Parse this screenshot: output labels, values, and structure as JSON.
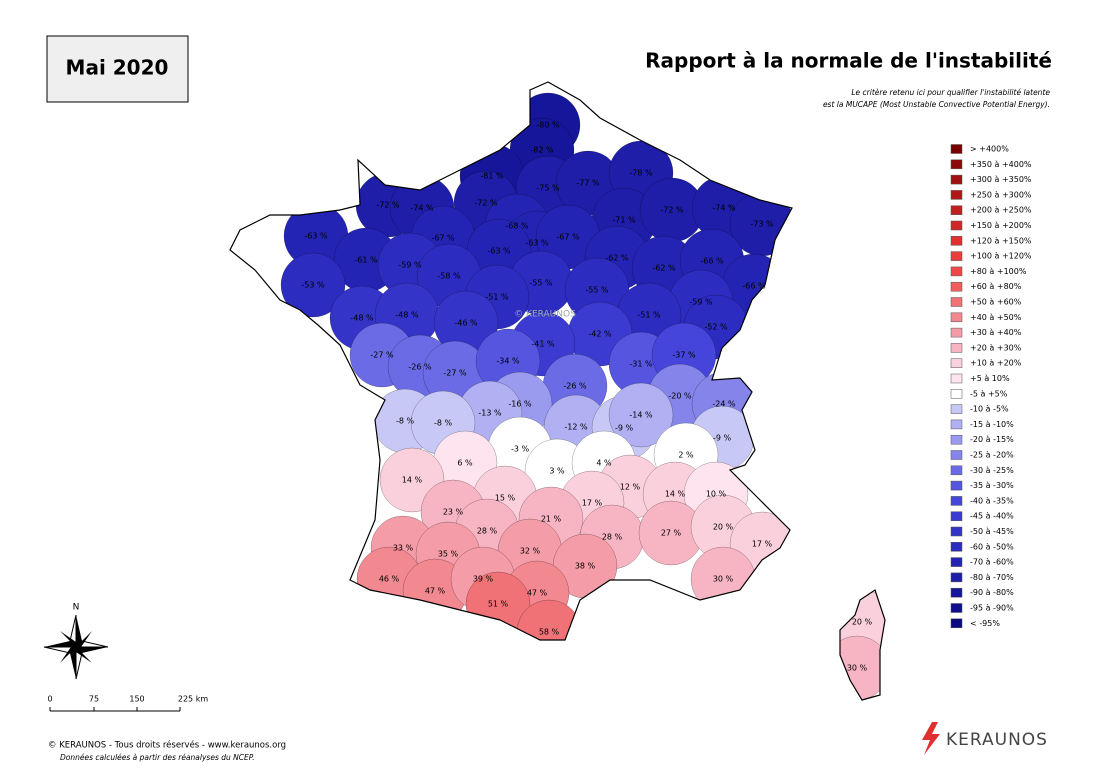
{
  "header": {
    "period": "Mai 2020",
    "title": "Rapport à la normale de l'instabilité",
    "note_line1": "Le critère retenu ici pour qualifier l'instabilité latente",
    "note_line2": "est la MUCAPE (Most Unstable Convective Potential Energy)."
  },
  "watermark": "© KERAUNOS",
  "legend": [
    {
      "label": "> +400%",
      "color": "#7a0000"
    },
    {
      "label": "+350 à +400%",
      "color": "#8e0a0a"
    },
    {
      "label": "+300 à +350%",
      "color": "#a01010"
    },
    {
      "label": "+250 à +300%",
      "color": "#b01818"
    },
    {
      "label": "+200 à +250%",
      "color": "#c02020"
    },
    {
      "label": "+150 à +200%",
      "color": "#d02828"
    },
    {
      "label": "+120 à +150%",
      "color": "#e03030"
    },
    {
      "label": "+100 à +120%",
      "color": "#ea3c3c"
    },
    {
      "label": "+80 à +100%",
      "color": "#f04848"
    },
    {
      "label": "+60 à +80%",
      "color": "#f25c5c"
    },
    {
      "label": "+50 à +60%",
      "color": "#f07276"
    },
    {
      "label": "+40 à +50%",
      "color": "#f28890"
    },
    {
      "label": "+30 à +40%",
      "color": "#f49ca8"
    },
    {
      "label": "+20 à +30%",
      "color": "#f7b4c2"
    },
    {
      "label": "+10 à +20%",
      "color": "#fad0dc"
    },
    {
      "label": "+5 à 10%",
      "color": "#fde4ee"
    },
    {
      "label": "-5 à +5%",
      "color": "#ffffff"
    },
    {
      "label": "-10 à -5%",
      "color": "#c8c8f6"
    },
    {
      "label": "-15 à -10%",
      "color": "#b0b0f2"
    },
    {
      "label": "-20 à -15%",
      "color": "#9a9aee"
    },
    {
      "label": "-25 à -20%",
      "color": "#8484ea"
    },
    {
      "label": "-30 à -25%",
      "color": "#6b6be6"
    },
    {
      "label": "-35 à -30%",
      "color": "#5555e0"
    },
    {
      "label": "-40 à -35%",
      "color": "#4545dc"
    },
    {
      "label": "-45 à -40%",
      "color": "#3b3bd2"
    },
    {
      "label": "-50 à -45%",
      "color": "#3434c8"
    },
    {
      "label": "-60 à -50%",
      "color": "#2c2cc0"
    },
    {
      "label": "-70 à -60%",
      "color": "#2424b4"
    },
    {
      "label": "-80 à -70%",
      "color": "#1e1ea8"
    },
    {
      "label": "-90 à -80%",
      "color": "#16169a"
    },
    {
      "label": "-95 à -90%",
      "color": "#10108c"
    },
    {
      "label": "< -95%",
      "color": "#0a0a80"
    }
  ],
  "departments": [
    {
      "label": "-80 %",
      "color": "#16169a"
    },
    {
      "label": "-82 %",
      "color": "#16169a"
    },
    {
      "label": "-81 %",
      "color": "#16169a"
    },
    {
      "label": "-75 %",
      "color": "#1e1ea8"
    },
    {
      "label": "-77 %",
      "color": "#1e1ea8"
    },
    {
      "label": "-78 %",
      "color": "#1e1ea8"
    },
    {
      "label": "-72 %",
      "color": "#1e1ea8"
    },
    {
      "label": "-74 %",
      "color": "#1e1ea8"
    },
    {
      "label": "-72 %",
      "color": "#1e1ea8"
    },
    {
      "label": "-71 %",
      "color": "#1e1ea8"
    },
    {
      "label": "-72 %",
      "color": "#1e1ea8"
    },
    {
      "label": "-74 %",
      "color": "#1e1ea8"
    },
    {
      "label": "-73 %",
      "color": "#1e1ea8"
    },
    {
      "label": "-63 %",
      "color": "#2424b4"
    },
    {
      "label": "-67 %",
      "color": "#2424b4"
    },
    {
      "label": "-68 %",
      "color": "#2424b4"
    },
    {
      "label": "-63 %",
      "color": "#2424b4"
    },
    {
      "label": "-67 %",
      "color": "#2424b4"
    },
    {
      "label": "-63 %",
      "color": "#2424b4"
    },
    {
      "label": "-61 %",
      "color": "#2424b4"
    },
    {
      "label": "-59 %",
      "color": "#2c2cc0"
    },
    {
      "label": "-58 %",
      "color": "#2c2cc0"
    },
    {
      "label": "-62 %",
      "color": "#2424b4"
    },
    {
      "label": "-62 %",
      "color": "#2424b4"
    },
    {
      "label": "-66 %",
      "color": "#2424b4"
    },
    {
      "label": "-53 %",
      "color": "#2c2cc0"
    },
    {
      "label": "-55 %",
      "color": "#2c2cc0"
    },
    {
      "label": "-55 %",
      "color": "#2c2cc0"
    },
    {
      "label": "-51 %",
      "color": "#2c2cc0"
    },
    {
      "label": "-66 %",
      "color": "#2424b4"
    },
    {
      "label": "-59 %",
      "color": "#2c2cc0"
    },
    {
      "label": "-48 %",
      "color": "#3434c8"
    },
    {
      "label": "-48 %",
      "color": "#3434c8"
    },
    {
      "label": "-46 %",
      "color": "#3434c8"
    },
    {
      "label": "-51 %",
      "color": "#2c2cc0"
    },
    {
      "label": "-42 %",
      "color": "#3b3bd2"
    },
    {
      "label": "-52 %",
      "color": "#2c2cc0"
    },
    {
      "label": "-41 %",
      "color": "#3b3bd2"
    },
    {
      "label": "-27 %",
      "color": "#6b6be6"
    },
    {
      "label": "-26 %",
      "color": "#6b6be6"
    },
    {
      "label": "-27 %",
      "color": "#6b6be6"
    },
    {
      "label": "-34 %",
      "color": "#5555e0"
    },
    {
      "label": "-31 %",
      "color": "#5555e0"
    },
    {
      "label": "-37 %",
      "color": "#4545dc"
    },
    {
      "label": "-26 %",
      "color": "#6b6be6"
    },
    {
      "label": "-20 %",
      "color": "#8484ea"
    },
    {
      "label": "-24 %",
      "color": "#8484ea"
    },
    {
      "label": "-16 %",
      "color": "#9a9aee"
    },
    {
      "label": "-13 %",
      "color": "#b0b0f2"
    },
    {
      "label": "-8 %",
      "color": "#c8c8f6"
    },
    {
      "label": "-8 %",
      "color": "#c8c8f6"
    },
    {
      "label": "-12 %",
      "color": "#b0b0f2"
    },
    {
      "label": "-9 %",
      "color": "#c8c8f6"
    },
    {
      "label": "-14 %",
      "color": "#b0b0f2"
    },
    {
      "label": "-9 %",
      "color": "#c8c8f6"
    },
    {
      "label": "-3 %",
      "color": "#ffffff"
    },
    {
      "label": "2 %",
      "color": "#ffffff"
    },
    {
      "label": "6 %",
      "color": "#fde4ee"
    },
    {
      "label": "3 %",
      "color": "#ffffff"
    },
    {
      "label": "4 %",
      "color": "#ffffff"
    },
    {
      "label": "14 %",
      "color": "#fad0dc"
    },
    {
      "label": "12 %",
      "color": "#fad0dc"
    },
    {
      "label": "14 %",
      "color": "#fad0dc"
    },
    {
      "label": "10 %",
      "color": "#fde4ee"
    },
    {
      "label": "15 %",
      "color": "#fad0dc"
    },
    {
      "label": "17 %",
      "color": "#fad0dc"
    },
    {
      "label": "23 %",
      "color": "#f7b4c2"
    },
    {
      "label": "21 %",
      "color": "#f7b4c2"
    },
    {
      "label": "28 %",
      "color": "#f7b4c2"
    },
    {
      "label": "28 %",
      "color": "#f7b4c2"
    },
    {
      "label": "27 %",
      "color": "#f7b4c2"
    },
    {
      "label": "20 %",
      "color": "#fad0dc"
    },
    {
      "label": "17 %",
      "color": "#fad0dc"
    },
    {
      "label": "33 %",
      "color": "#f49ca8"
    },
    {
      "label": "35 %",
      "color": "#f49ca8"
    },
    {
      "label": "32 %",
      "color": "#f49ca8"
    },
    {
      "label": "38 %",
      "color": "#f49ca8"
    },
    {
      "label": "46 %",
      "color": "#f28890"
    },
    {
      "label": "47 %",
      "color": "#f28890"
    },
    {
      "label": "39 %",
      "color": "#f49ca8"
    },
    {
      "label": "47 %",
      "color": "#f28890"
    },
    {
      "label": "30 %",
      "color": "#f7b4c2"
    },
    {
      "label": "51 %",
      "color": "#f07276"
    },
    {
      "label": "58 %",
      "color": "#f07276"
    },
    {
      "label": "20 %",
      "color": "#fad0dc"
    },
    {
      "label": "30 %",
      "color": "#f7b4c2"
    }
  ],
  "compass": "N",
  "scale": [
    "0",
    "75",
    "150",
    "225 km"
  ],
  "footer": {
    "copyright": "© KERAUNOS - Tous droits réservés - www.keraunos.org",
    "source": "Données calculées à partir des réanalyses du NCEP."
  },
  "logo": "KERAUNOS"
}
